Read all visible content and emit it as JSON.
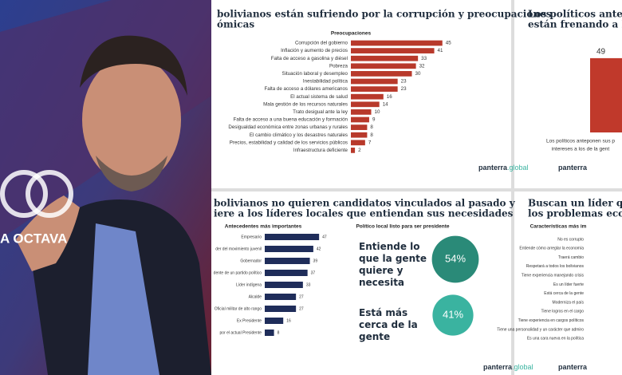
{
  "logo": {
    "text": "A OCTAVA"
  },
  "chart_data": [
    {
      "type": "hbar",
      "title_lines": [
        "bolivianos están sufriendo por la corrupción y preocupaciones",
        "ómicas"
      ],
      "subtitle": "Preocupaciones",
      "categories": [
        "Corrupción del gobierno",
        "Inflación y aumento de precios",
        "Falta de acceso a gasolina y diésel",
        "Pobreza",
        "Situación laboral y desempleo",
        "Inestabilidad política",
        "Falta de acceso a dólares americanos",
        "El actual sistema de salud",
        "Mala gestión de los recursos naturales",
        "Trato desigual ante la ley",
        "Falta de acceso a una buena educación y formación",
        "Desigualdad económica entre zonas urbanas y rurales",
        "El cambio climático y los desastres naturales",
        "Precios, estabilidad y calidad de los servicios públicos",
        "Infraestructura deficiente"
      ],
      "values": [
        45,
        41,
        33,
        32,
        30,
        23,
        23,
        16,
        14,
        10,
        9,
        8,
        8,
        7,
        2
      ],
      "color": "#b8392b",
      "brand": "panterra",
      "brand_suffix": ".global"
    },
    {
      "type": "bar",
      "title_lines": [
        "Los políticos anteponen",
        "están frenando a la ge"
      ],
      "values": [
        49
      ],
      "color": "#c0392b",
      "caption_lines": [
        "Los políticos anteponen sus p",
        "intereses a los de la gent"
      ],
      "brand": "panterra"
    },
    {
      "type": "hbar",
      "title_lines": [
        "bolivianos no quieren candidatos vinculados al pasado y",
        "iere a los líderes locales que entiendan sus necesidades"
      ],
      "subtitle": "Antecedentes más importantes",
      "categories": [
        "Empresario",
        "der del movimiento juvenil",
        "Gobernador",
        "dente de un partido político",
        "Líder indígena",
        "Alcalde",
        "Oficial militar de alto rango",
        "Ex Presidente",
        "por el actual Presidente"
      ],
      "values": [
        47,
        42,
        39,
        37,
        33,
        27,
        27,
        16,
        8
      ],
      "color": "#1f2d5a",
      "brand": "panterra",
      "brand_suffix": ".global"
    },
    {
      "type": "circles",
      "subtitle": "Político local listo para ser presidente",
      "categories": [
        "Entiende lo que la gente quiere y necesita",
        "Está más cerca de la gente"
      ],
      "values": [
        54,
        41
      ],
      "value_labels": [
        "54%",
        "41%"
      ],
      "colors": [
        "#2a8a78",
        "#3ab3a0"
      ]
    },
    {
      "type": "hbar",
      "title_lines": [
        "Buscan un líder que p",
        "los problemas económ"
      ],
      "subtitle": "Características más im",
      "categories": [
        "No es corrupto",
        "Entiende cómo arreglar la economía",
        "Traerá cambio",
        "Respetará a todos los bolivianos",
        "Tiene experiencia manejando crisis",
        "Es un líder fuerte",
        "Está cerca de la gente",
        "Moderniza el país",
        "Tiene logros en el cargo",
        "Tiene experiencia en cargos políticos",
        "Tiene una personalidad y un carácter que admiro",
        "Es una cara nueva en la política"
      ],
      "color": "#1f2d5a",
      "brand": "panterra"
    }
  ]
}
